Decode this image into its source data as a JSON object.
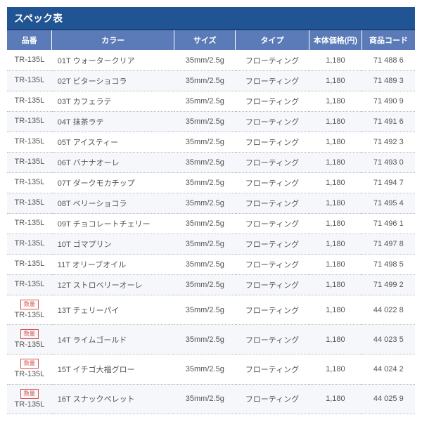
{
  "spec_table": {
    "title": "スペック表",
    "title_bg": "#205493",
    "header_bg": "#5a7bb8",
    "columns": [
      {
        "key": "model",
        "label": "品番"
      },
      {
        "key": "color",
        "label": "カラー"
      },
      {
        "key": "size",
        "label": "サイズ"
      },
      {
        "key": "type",
        "label": "タイプ"
      },
      {
        "key": "price",
        "label": "本体価格(円)"
      },
      {
        "key": "code",
        "label": "商品コード"
      }
    ],
    "badge_text": "数量",
    "rows": [
      {
        "model": "TR-135L",
        "badge": false,
        "color": "01T ウォータークリア",
        "size": "35mm/2.5g",
        "type": "フローティング",
        "price": "1,180",
        "code": "71 488 6"
      },
      {
        "model": "TR-135L",
        "badge": false,
        "color": "02T ビターショコラ",
        "size": "35mm/2.5g",
        "type": "フローティング",
        "price": "1,180",
        "code": "71 489 3"
      },
      {
        "model": "TR-135L",
        "badge": false,
        "color": "03T カフェラテ",
        "size": "35mm/2.5g",
        "type": "フローティング",
        "price": "1,180",
        "code": "71 490 9"
      },
      {
        "model": "TR-135L",
        "badge": false,
        "color": "04T 抹茶ラテ",
        "size": "35mm/2.5g",
        "type": "フローティング",
        "price": "1,180",
        "code": "71 491 6"
      },
      {
        "model": "TR-135L",
        "badge": false,
        "color": "05T アイスティー",
        "size": "35mm/2.5g",
        "type": "フローティング",
        "price": "1,180",
        "code": "71 492 3"
      },
      {
        "model": "TR-135L",
        "badge": false,
        "color": "06T バナナオーレ",
        "size": "35mm/2.5g",
        "type": "フローティング",
        "price": "1,180",
        "code": "71 493 0"
      },
      {
        "model": "TR-135L",
        "badge": false,
        "color": "07T ダークモカチップ",
        "size": "35mm/2.5g",
        "type": "フローティング",
        "price": "1,180",
        "code": "71 494 7"
      },
      {
        "model": "TR-135L",
        "badge": false,
        "color": "08T ベリーショコラ",
        "size": "35mm/2.5g",
        "type": "フローティング",
        "price": "1,180",
        "code": "71 495 4"
      },
      {
        "model": "TR-135L",
        "badge": false,
        "color": "09T チョコレートチェリー",
        "size": "35mm/2.5g",
        "type": "フローティング",
        "price": "1,180",
        "code": "71 496 1"
      },
      {
        "model": "TR-135L",
        "badge": false,
        "color": "10T ゴマプリン",
        "size": "35mm/2.5g",
        "type": "フローティング",
        "price": "1,180",
        "code": "71 497 8"
      },
      {
        "model": "TR-135L",
        "badge": false,
        "color": "11T オリーブオイル",
        "size": "35mm/2.5g",
        "type": "フローティング",
        "price": "1,180",
        "code": "71 498 5"
      },
      {
        "model": "TR-135L",
        "badge": false,
        "color": "12T ストロベリーオーレ",
        "size": "35mm/2.5g",
        "type": "フローティング",
        "price": "1,180",
        "code": "71 499 2"
      },
      {
        "model": "TR-135L",
        "badge": true,
        "color": "13T チェリーパイ",
        "size": "35mm/2.5g",
        "type": "フローティング",
        "price": "1,180",
        "code": "44 022 8"
      },
      {
        "model": "TR-135L",
        "badge": true,
        "color": "14T ライムゴールド",
        "size": "35mm/2.5g",
        "type": "フローティング",
        "price": "1,180",
        "code": "44 023 5"
      },
      {
        "model": "TR-135L",
        "badge": true,
        "color": "15T イチゴ大福グロー",
        "size": "35mm/2.5g",
        "type": "フローティング",
        "price": "1,180",
        "code": "44 024 2"
      },
      {
        "model": "TR-135L",
        "badge": true,
        "color": "16T スナックペレット",
        "size": "35mm/2.5g",
        "type": "フローティング",
        "price": "1,180",
        "code": "44 025 9"
      }
    ]
  }
}
